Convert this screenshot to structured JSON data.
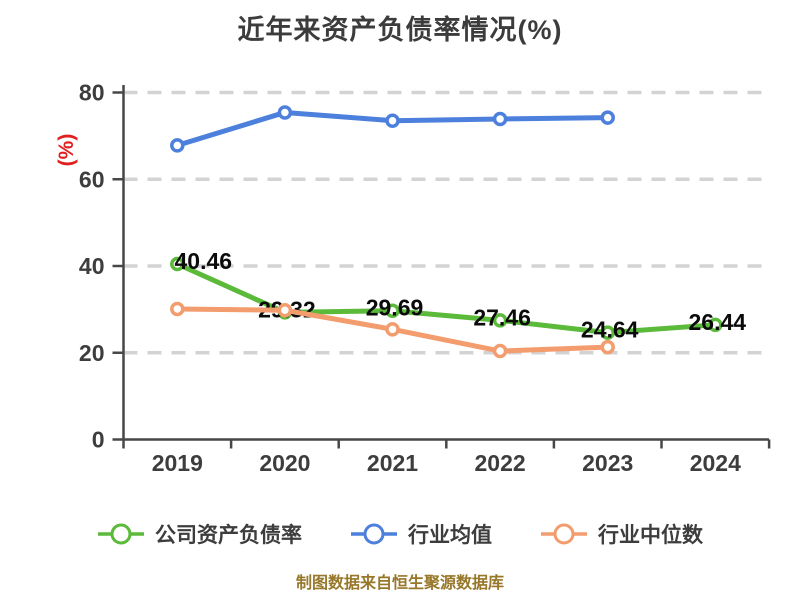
{
  "chart_data": {
    "type": "line",
    "title": "近年来资产负债率情况(%)",
    "ylabel": "(%)",
    "ylabel_color": "#e02020",
    "xlabel": "",
    "categories": [
      "2019",
      "2020",
      "2021",
      "2022",
      "2023",
      "2024"
    ],
    "yticks": [
      0,
      20,
      40,
      60,
      80
    ],
    "ylim": [
      0,
      84
    ],
    "grid": "horizontal-dashed",
    "legend_position": "bottom",
    "series": [
      {
        "key": "company-debt-ratio",
        "name": "公司资产负债率",
        "color": "#5bba3a",
        "marker": "circle-white-fill",
        "show_labels": true,
        "values": [
          40.46,
          29.32,
          29.69,
          27.46,
          24.64,
          26.44
        ]
      },
      {
        "key": "industry-average",
        "name": "行业均值",
        "color": "#4c80dc",
        "marker": "circle-white-fill",
        "show_labels": false,
        "values": [
          67.8,
          75.4,
          73.5,
          73.9,
          74.2
        ]
      },
      {
        "key": "industry-median",
        "name": "行业中位数",
        "color": "#f39c6e",
        "marker": "circle-white-fill",
        "show_labels": false,
        "values": [
          30.1,
          29.8,
          25.4,
          20.4,
          21.3
        ]
      }
    ]
  },
  "footer": {
    "text": "制图数据来自恒生聚源数据库",
    "color": "#97772a"
  }
}
